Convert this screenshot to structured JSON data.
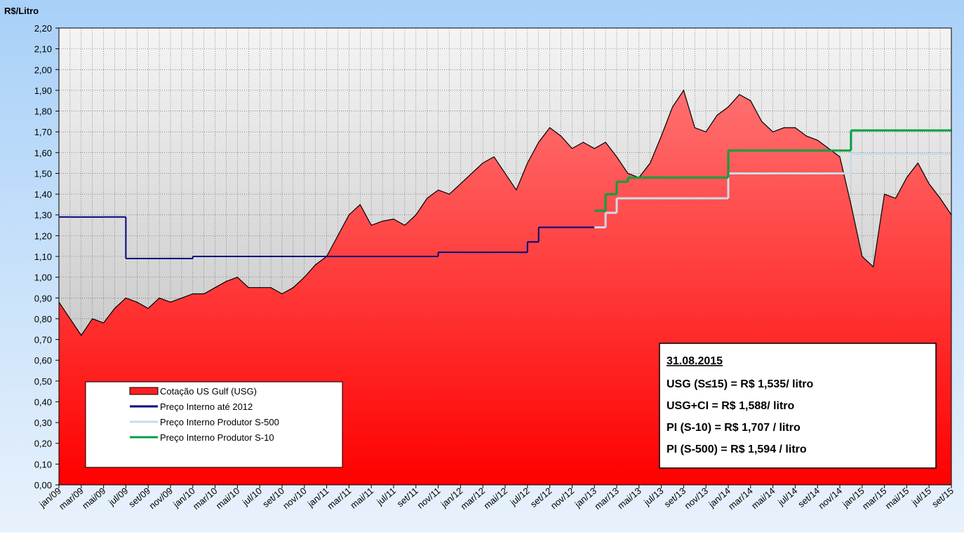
{
  "chart_data": {
    "type": "area-step",
    "y_label": "R$/Litro",
    "categories": [
      "jan/09",
      null,
      "mar/09",
      null,
      "mai/09",
      null,
      "jul/09",
      null,
      "set/09",
      null,
      "nov/09",
      null,
      "jan/10",
      null,
      "mar/10",
      null,
      "mai/10",
      null,
      "jul/10",
      null,
      "set/10",
      null,
      "nov/10",
      null,
      "jan/11",
      null,
      "mar/11",
      null,
      "mai/11",
      null,
      "jul/11",
      null,
      "set/11",
      null,
      "nov/11",
      null,
      "jan/12",
      null,
      "mar/12",
      null,
      "mai/12",
      null,
      "jul/12",
      null,
      "set/12",
      null,
      "nov/12",
      null,
      "jan/13",
      null,
      "mar/13",
      null,
      "mai/13",
      null,
      "jul/13",
      null,
      "set/13",
      null,
      "nov/13",
      null,
      "jan/14",
      null,
      "mar/14",
      null,
      "mai/14",
      null,
      "jul/14",
      null,
      "set/14",
      null,
      "nov/14",
      null,
      "jan/15",
      null,
      "mar/15",
      null,
      "mai/15",
      null,
      "jul/15",
      null,
      "set/15"
    ],
    "series": [
      {
        "name": "Cotação US Gulf (USG)",
        "style": "area",
        "color": "#ff2020",
        "values": [
          0.88,
          0.8,
          0.72,
          0.8,
          0.78,
          0.85,
          0.9,
          0.88,
          0.85,
          0.9,
          0.88,
          0.9,
          0.92,
          0.92,
          0.95,
          0.98,
          1.0,
          0.95,
          0.95,
          0.95,
          0.92,
          0.95,
          1.0,
          1.06,
          1.1,
          1.2,
          1.3,
          1.35,
          1.25,
          1.27,
          1.28,
          1.25,
          1.3,
          1.38,
          1.42,
          1.4,
          1.45,
          1.5,
          1.55,
          1.58,
          1.5,
          1.42,
          1.55,
          1.65,
          1.72,
          1.68,
          1.62,
          1.65,
          1.62,
          1.65,
          1.58,
          1.5,
          1.48,
          1.55,
          1.68,
          1.82,
          1.9,
          1.72,
          1.7,
          1.78,
          1.82,
          1.88,
          1.85,
          1.75,
          1.7,
          1.72,
          1.72,
          1.68,
          1.66,
          1.62,
          1.58,
          1.35,
          1.1,
          1.05,
          1.4,
          1.38,
          1.48,
          1.55,
          1.45,
          1.38,
          1.3
        ]
      },
      {
        "name": "Preço Interno até 2012",
        "style": "step",
        "color": "#000080",
        "values": [
          1.29,
          1.29,
          1.29,
          1.29,
          1.29,
          1.29,
          1.09,
          1.09,
          1.09,
          1.09,
          1.09,
          1.09,
          1.1,
          1.1,
          1.1,
          1.1,
          1.1,
          1.1,
          1.1,
          1.1,
          1.1,
          1.1,
          1.1,
          1.1,
          1.1,
          1.1,
          1.1,
          1.1,
          1.1,
          1.1,
          1.1,
          1.1,
          1.1,
          1.1,
          1.12,
          1.12,
          1.12,
          1.12,
          1.12,
          1.12,
          1.12,
          1.12,
          1.17,
          1.24,
          1.24,
          1.24,
          1.24,
          1.24,
          1.24,
          null,
          null,
          null,
          null,
          null,
          null,
          null,
          null,
          null,
          null,
          null,
          null,
          null,
          null,
          null,
          null,
          null,
          null,
          null,
          null,
          null,
          null,
          null,
          null,
          null,
          null,
          null,
          null,
          null,
          null,
          null,
          null
        ]
      },
      {
        "name": "Preço Interno Produtor S-500",
        "style": "step",
        "color": "#c8dcea",
        "values": [
          null,
          null,
          null,
          null,
          null,
          null,
          null,
          null,
          null,
          null,
          null,
          null,
          null,
          null,
          null,
          null,
          null,
          null,
          null,
          null,
          null,
          null,
          null,
          null,
          null,
          null,
          null,
          null,
          null,
          null,
          null,
          null,
          null,
          null,
          null,
          null,
          null,
          null,
          null,
          null,
          null,
          null,
          null,
          null,
          null,
          null,
          null,
          null,
          1.24,
          1.31,
          1.38,
          1.38,
          1.38,
          1.38,
          1.38,
          1.38,
          1.38,
          1.38,
          1.38,
          1.38,
          1.5,
          1.5,
          1.5,
          1.5,
          1.5,
          1.5,
          1.5,
          1.5,
          1.5,
          1.5,
          1.5,
          1.594,
          1.594,
          1.594,
          1.594,
          1.594,
          1.594,
          1.594,
          1.594,
          1.594,
          1.594
        ]
      },
      {
        "name": "Preço Interno Produtor S-10",
        "style": "step",
        "color": "#00a040",
        "values": [
          null,
          null,
          null,
          null,
          null,
          null,
          null,
          null,
          null,
          null,
          null,
          null,
          null,
          null,
          null,
          null,
          null,
          null,
          null,
          null,
          null,
          null,
          null,
          null,
          null,
          null,
          null,
          null,
          null,
          null,
          null,
          null,
          null,
          null,
          null,
          null,
          null,
          null,
          null,
          null,
          null,
          null,
          null,
          null,
          null,
          null,
          null,
          null,
          1.32,
          1.4,
          1.46,
          1.48,
          1.48,
          1.48,
          1.48,
          1.48,
          1.48,
          1.48,
          1.48,
          1.48,
          1.61,
          1.61,
          1.61,
          1.61,
          1.61,
          1.61,
          1.61,
          1.61,
          1.61,
          1.61,
          1.61,
          1.707,
          1.707,
          1.707,
          1.707,
          1.707,
          1.707,
          1.707,
          1.707,
          1.707,
          1.707
        ]
      }
    ],
    "ylim": [
      0,
      2.2
    ],
    "yticks": [
      {
        "value": 0,
        "label": "0,00"
      },
      {
        "value": 0.1,
        "label": "0,10"
      },
      {
        "value": 0.2,
        "label": "0,20"
      },
      {
        "value": 0.3,
        "label": "0,30"
      },
      {
        "value": 0.4,
        "label": "0,40"
      },
      {
        "value": 0.5,
        "label": "0,50"
      },
      {
        "value": 0.6,
        "label": "0,60"
      },
      {
        "value": 0.7,
        "label": "0,70"
      },
      {
        "value": 0.8,
        "label": "0,80"
      },
      {
        "value": 0.9,
        "label": "0,90"
      },
      {
        "value": 1.0,
        "label": "1,00"
      },
      {
        "value": 1.1,
        "label": "1,10"
      },
      {
        "value": 1.2,
        "label": "1,20"
      },
      {
        "value": 1.3,
        "label": "1,30"
      },
      {
        "value": 1.4,
        "label": "1,40"
      },
      {
        "value": 1.5,
        "label": "1,50"
      },
      {
        "value": 1.6,
        "label": "1,60"
      },
      {
        "value": 1.7,
        "label": "1,70"
      },
      {
        "value": 1.8,
        "label": "1,80"
      },
      {
        "value": 1.9,
        "label": "1,90"
      },
      {
        "value": 2.0,
        "label": "2,00"
      },
      {
        "value": 2.1,
        "label": "2,10"
      },
      {
        "value": 2.2,
        "label": "2,20"
      }
    ],
    "grid": true,
    "annotation": {
      "title": "31.08.2015",
      "lines": [
        "USG (S≤15) = R$ 1,535/ litro",
        "USG+CI = R$ 1,588/ litro",
        "PI (S-10) = R$ 1,707 / litro",
        "PI (S-500) = R$ 1,594 / litro"
      ]
    }
  }
}
